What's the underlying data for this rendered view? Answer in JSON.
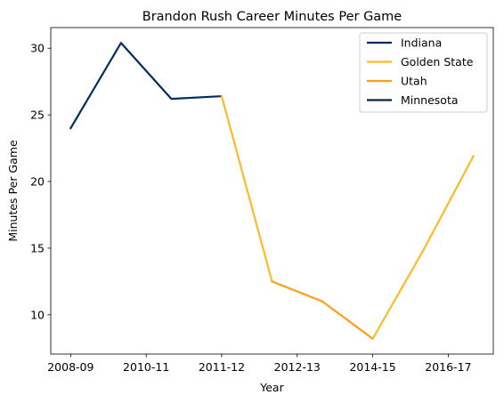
{
  "chart_data": {
    "type": "line",
    "title": "Brandon Rush Career Minutes Per Game",
    "xlabel": "Year",
    "ylabel": "Minutes Per Game",
    "x": [
      "2008-09",
      "2009-10",
      "2010-11",
      "2011-12",
      "2012-13",
      "2013-14",
      "2014-15",
      "2015-16",
      "2016-17"
    ],
    "x_tick_labels": [
      "2008-09",
      "2010-11",
      "2011-12",
      "2012-13",
      "2014-15",
      "2016-17"
    ],
    "ylim": [
      7.05,
      31.55
    ],
    "y_ticks": [
      10,
      15,
      20,
      25,
      30
    ],
    "grid": false,
    "legend_position": "top-right",
    "series": [
      {
        "name": "Indiana",
        "color": "#002D62",
        "x": [
          "2008-09",
          "2009-10",
          "2010-11",
          "2011-12"
        ],
        "values": [
          24.0,
          30.4,
          26.2,
          26.4
        ]
      },
      {
        "name": "Golden State",
        "color": "#FDB927",
        "x": [
          "2011-12",
          "2012-13"
        ],
        "values": [
          26.4,
          12.5
        ]
      },
      {
        "name": "Utah",
        "color": "#F9A01B",
        "x": [
          "2012-13",
          "2013-14",
          "2014-15"
        ],
        "values": [
          12.5,
          11.0,
          8.2
        ]
      },
      {
        "name": "Golden State",
        "color": "#FDB927",
        "x": [
          "2014-15",
          "2015-16",
          "2016-17"
        ],
        "values": [
          8.2,
          14.8,
          21.9
        ],
        "show_in_legend": false
      },
      {
        "name": "Minnesota",
        "color": "#0C2340",
        "x": [],
        "values": []
      }
    ]
  }
}
